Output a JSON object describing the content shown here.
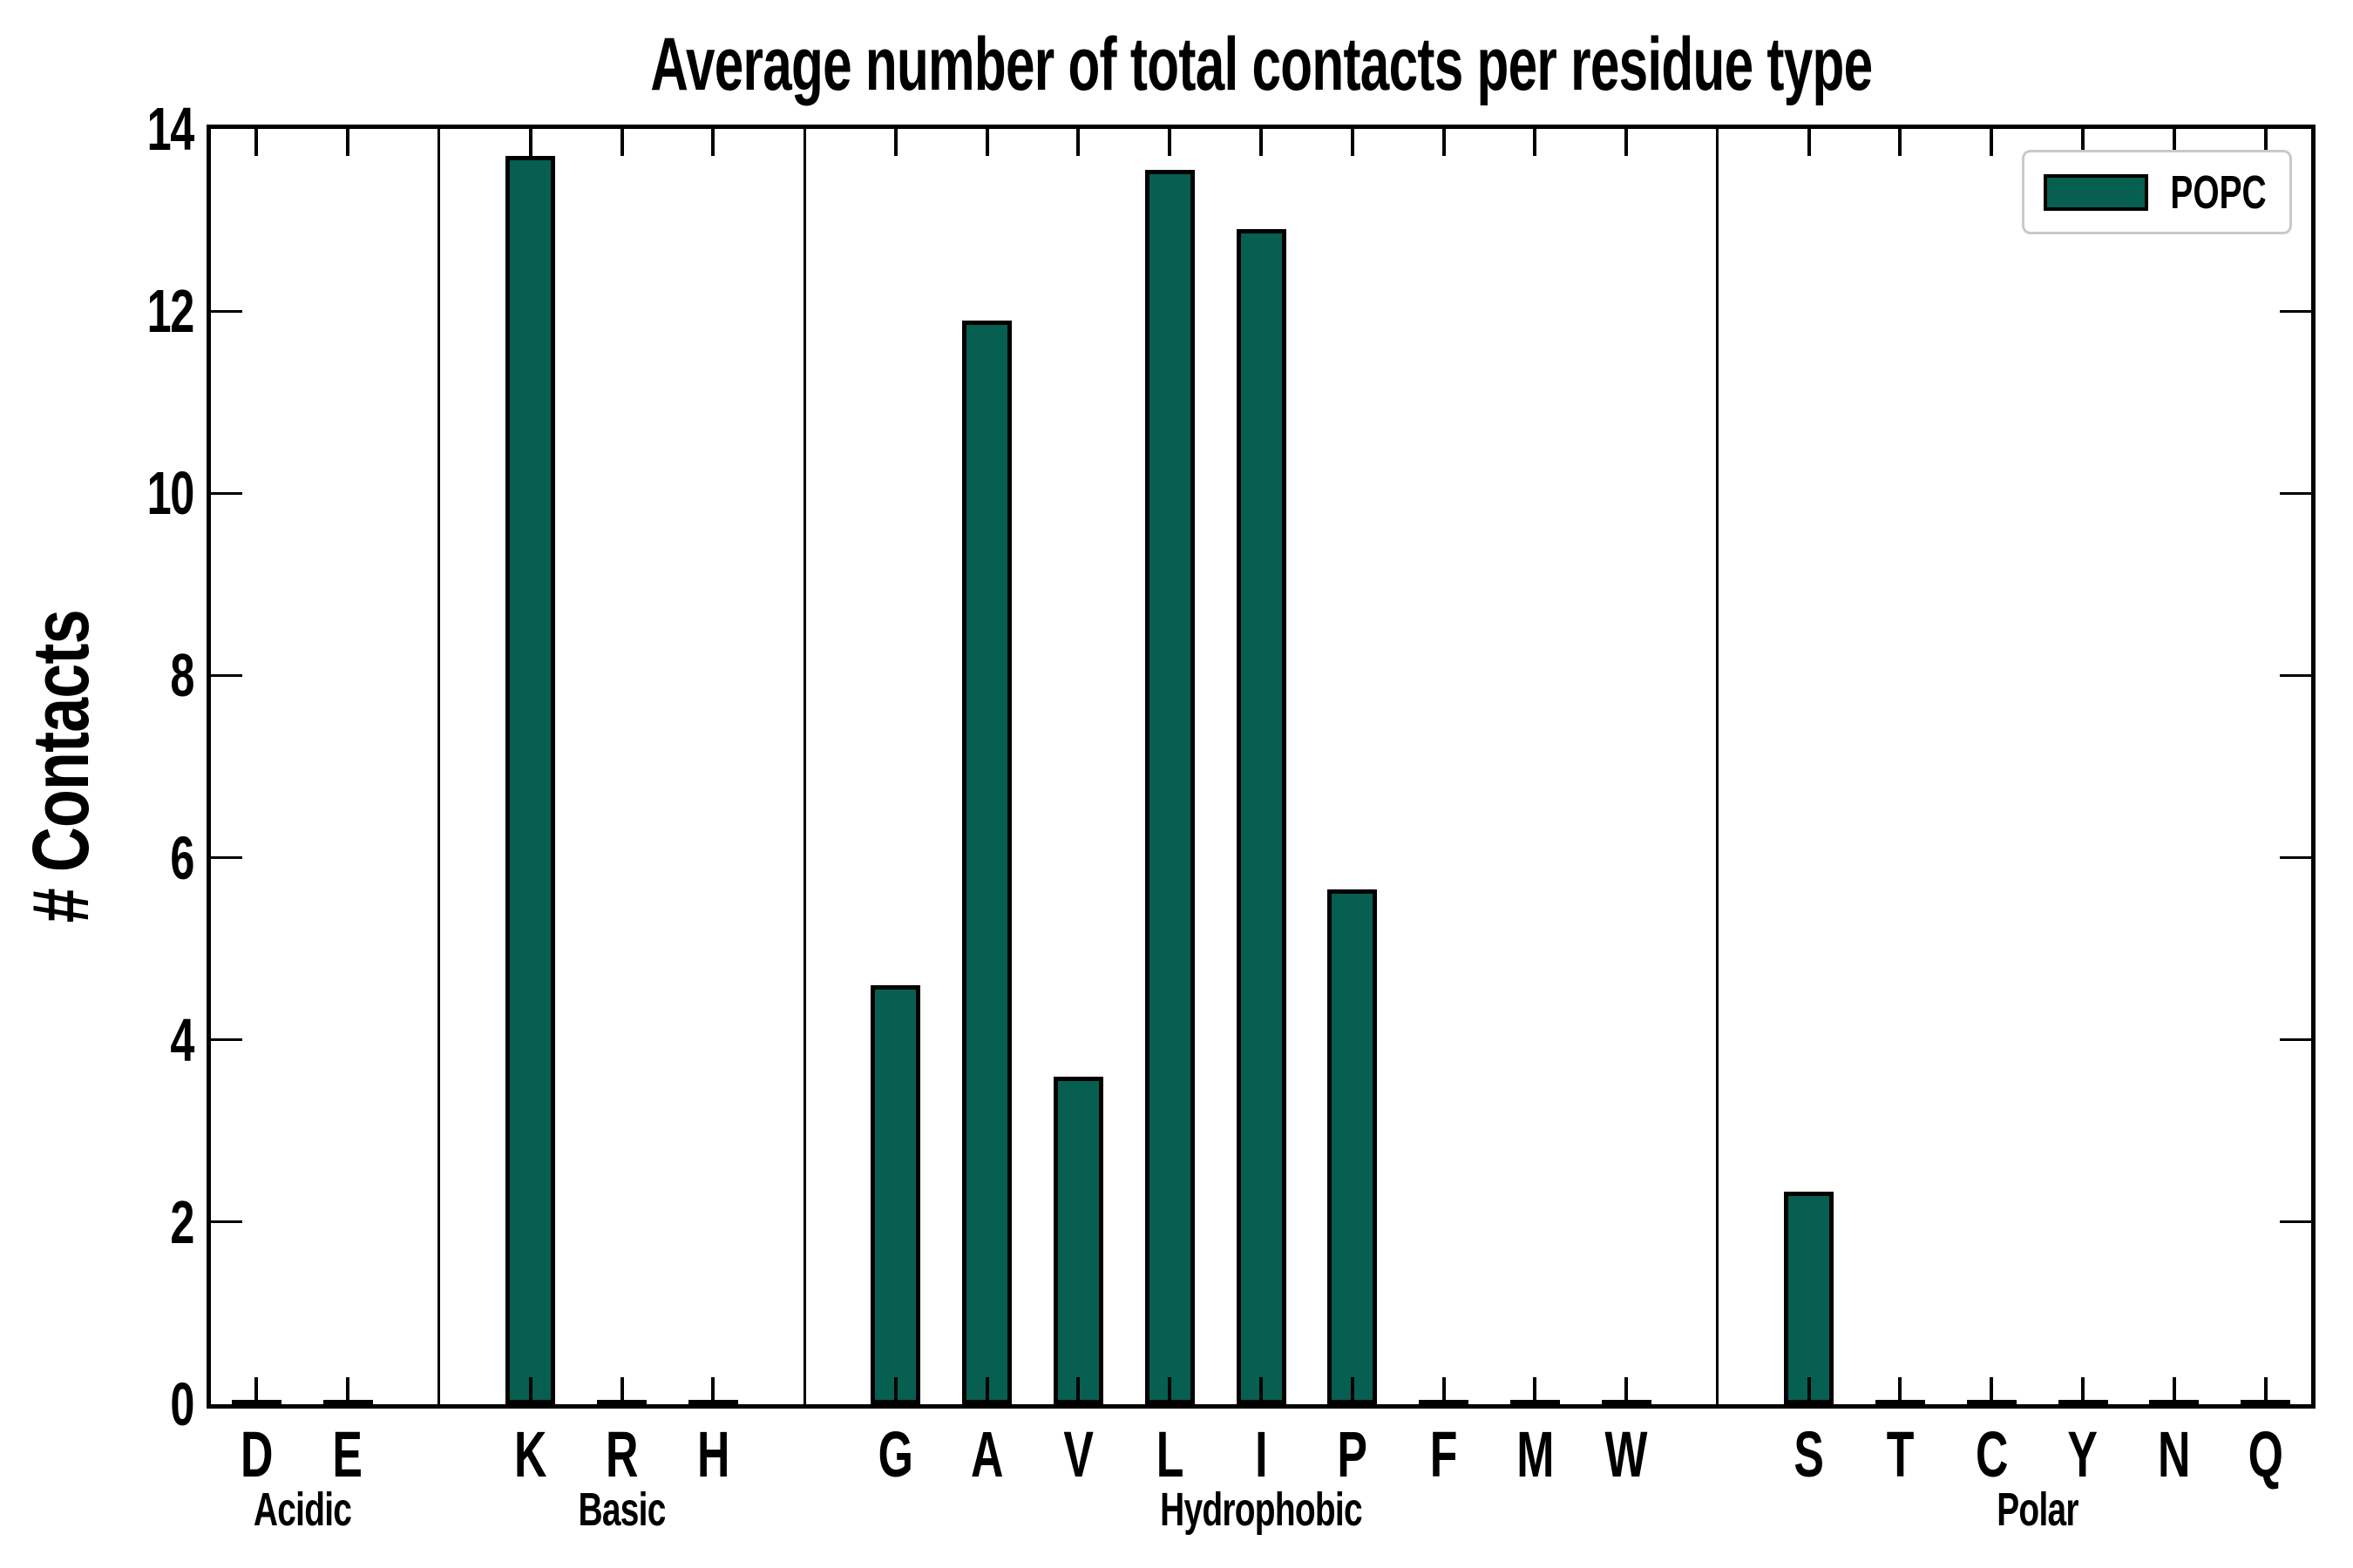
{
  "title": "Average number of total contacts per residue type",
  "ylabel": "# Contacts",
  "legend": {
    "label": "POPC"
  },
  "colors": {
    "bar_fill": "#065f51",
    "bar_edge": "#000000",
    "legend_border": "#c9c9c9"
  },
  "chart_data": {
    "type": "bar",
    "title": "Average number of total contacts per residue type",
    "xlabel": "",
    "ylabel": "# Contacts",
    "ylim": [
      0,
      14
    ],
    "yticks": [
      0,
      2,
      4,
      6,
      8,
      10,
      12,
      14
    ],
    "grid": false,
    "legend_position": "upper right",
    "series_name": "POPC",
    "groups": [
      {
        "label": "Acidic",
        "categories": [
          "D",
          "E"
        ],
        "values": [
          0.03,
          0.03
        ]
      },
      {
        "label": "Basic",
        "categories": [
          "K",
          "R",
          "H"
        ],
        "values": [
          13.7,
          0.03,
          0.03
        ]
      },
      {
        "label": "Hydrophobic",
        "categories": [
          "G",
          "A",
          "V",
          "L",
          "I",
          "P",
          "F",
          "M",
          "W"
        ],
        "values": [
          4.6,
          11.9,
          3.6,
          13.55,
          12.9,
          5.65,
          0.03,
          0.03,
          0.03
        ]
      },
      {
        "label": "Polar",
        "categories": [
          "S",
          "T",
          "C",
          "Y",
          "N",
          "Q"
        ],
        "values": [
          2.33,
          0.03,
          0.03,
          0.03,
          0.03,
          0.03
        ]
      }
    ]
  }
}
